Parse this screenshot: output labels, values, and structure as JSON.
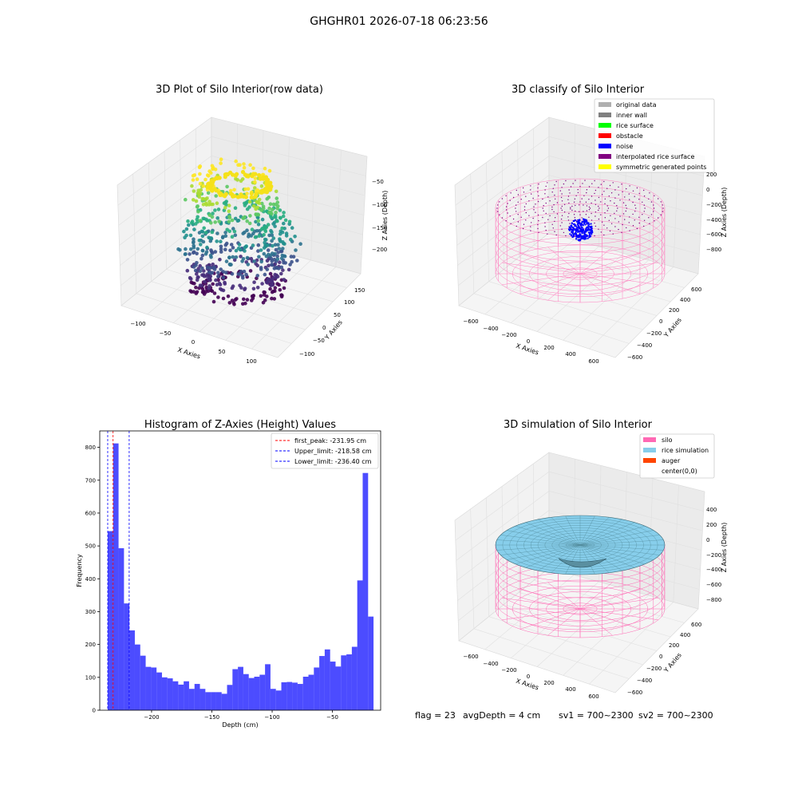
{
  "figure": {
    "suptitle": "GHGHR01 2026-07-18 06:23:56",
    "status": {
      "flag": "flag = 23",
      "avg_depth": "avgDepth = 4 cm",
      "sv1": "sv1 = 700~2300",
      "sv2": "sv2 = 700~2300"
    }
  },
  "chart_data": [
    {
      "type": "scatter3d",
      "title": "3D Plot of Silo Interior(row data)",
      "xlabel": "X Axies",
      "ylabel": "Y Axies",
      "zlabel": "Z Axies (Depth)",
      "xticks": [
        "−100",
        "−50",
        "0",
        "50",
        "100"
      ],
      "yticks": [
        "−100",
        "−50",
        "0",
        "50",
        "100",
        "150"
      ],
      "zticks": [
        "−50",
        "−100",
        "−150",
        "−200"
      ],
      "colormap": "viridis"
    },
    {
      "type": "scatter3d",
      "title": "3D classify of Silo Interior",
      "xlabel": "X Axies",
      "ylabel": "Y Axies",
      "zlabel": "Z Axies (Depth)",
      "xticks": [
        "−600",
        "−400",
        "−200",
        "0",
        "200",
        "400",
        "600"
      ],
      "yticks": [
        "−600",
        "−400",
        "−200",
        "0",
        "200",
        "400",
        "600"
      ],
      "zticks": [
        "200",
        "0",
        "−200",
        "−400",
        "−600",
        "−800"
      ],
      "legend": {
        "placement": "upper-right",
        "entries": [
          {
            "label": "original data",
            "color": "#b0b0b0"
          },
          {
            "label": "inner wall",
            "color": "#808080"
          },
          {
            "label": "rice surface",
            "color": "#00ff00"
          },
          {
            "label": "obstacle",
            "color": "#ff0000"
          },
          {
            "label": "noise",
            "color": "#0000ff"
          },
          {
            "label": "interpolated rice surface",
            "color": "#800080"
          },
          {
            "label": "symmetric generated points",
            "color": "#ffff00"
          }
        ]
      }
    },
    {
      "type": "bar",
      "title": "Histogram of Z-Axies (Height) Values",
      "xlabel": "Depth (cm)",
      "ylabel": "Frequency",
      "xlim": [
        -243,
        -10
      ],
      "ylim": [
        0,
        850
      ],
      "xticks": [
        -200,
        -150,
        -100,
        -50
      ],
      "yticks": [
        0,
        100,
        200,
        300,
        400,
        500,
        600,
        700,
        800
      ],
      "bar_color": "#0000ff",
      "bins": {
        "start": -236.4,
        "width": 4.5,
        "values": [
          545,
          812,
          493,
          325,
          243,
          200,
          166,
          132,
          130,
          115,
          100,
          97,
          88,
          78,
          88,
          65,
          80,
          65,
          55,
          55,
          55,
          50,
          77,
          125,
          132,
          110,
          98,
          102,
          108,
          140,
          65,
          60,
          85,
          86,
          84,
          80,
          102,
          108,
          130,
          165,
          185,
          148,
          133,
          167,
          170,
          193,
          395,
          722,
          285
        ]
      },
      "vlines": [
        {
          "label": "first_peak: -231.95 cm",
          "x": -231.95,
          "color": "#ff0000"
        },
        {
          "label": "Upper_limit: -218.58 cm",
          "x": -218.58,
          "color": "#0000ff"
        },
        {
          "label": "Lower_limit: -236.40 cm",
          "x": -236.4,
          "color": "#0000ff"
        }
      ],
      "legend": {
        "placement": "upper-right"
      }
    },
    {
      "type": "surface3d",
      "title": "3D simulation of Silo Interior",
      "xlabel": "X Axies",
      "ylabel": "Y Axies",
      "zlabel": "Z Axies (Depth)",
      "xticks": [
        "−600",
        "−400",
        "−200",
        "0",
        "200",
        "400",
        "600"
      ],
      "yticks": [
        "−600",
        "−400",
        "−200",
        "0",
        "200",
        "400",
        "600"
      ],
      "zticks": [
        "400",
        "200",
        "0",
        "−200",
        "−400",
        "−600",
        "−800"
      ],
      "legend": {
        "placement": "upper-right",
        "entries": [
          {
            "label": "silo",
            "color": "#ff69b4"
          },
          {
            "label": "rice simulation",
            "color": "#87ceeb"
          },
          {
            "label": "auger",
            "color": "#ff4500"
          },
          {
            "label": "center(0,0)",
            "color": "#ffffff"
          }
        ]
      }
    }
  ]
}
